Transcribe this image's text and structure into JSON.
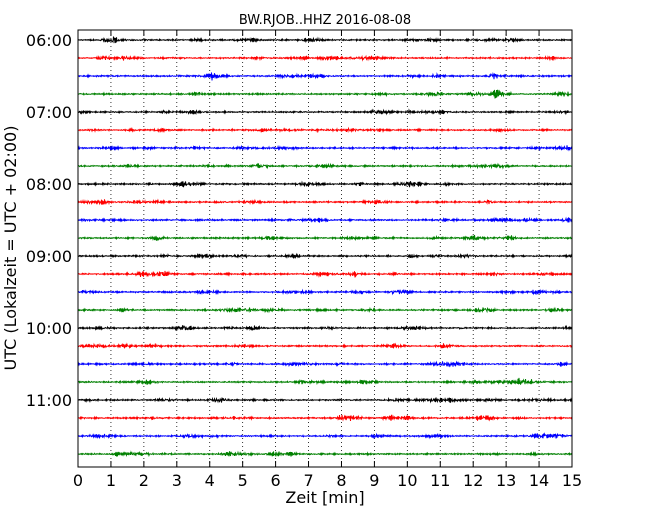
{
  "chart_data": {
    "type": "line",
    "title": "BW.RJOB..HHZ 2016-08-08",
    "xlabel": "Zeit  [min]",
    "ylabel": "UTC (Lokalzeit = UTC + 02:00)",
    "xlim": [
      0,
      15
    ],
    "x_ticks": [
      "0",
      "1",
      "2",
      "3",
      "4",
      "5",
      "6",
      "7",
      "8",
      "9",
      "10",
      "11",
      "12",
      "13",
      "14",
      "15"
    ],
    "y_ticks": [
      {
        "label": "06:00",
        "trace_index": 0
      },
      {
        "label": "07:00",
        "trace_index": 4
      },
      {
        "label": "08:00",
        "trace_index": 8
      },
      {
        "label": "09:00",
        "trace_index": 12
      },
      {
        "label": "10:00",
        "trace_index": 16
      },
      {
        "label": "11:00",
        "trace_index": 20
      }
    ],
    "trace_minutes": 15,
    "trace_colors": [
      "#000000",
      "#ff0000",
      "#0000ff",
      "#008000"
    ],
    "traces": [
      {
        "start": "06:00"
      },
      {
        "start": "06:15"
      },
      {
        "start": "06:30"
      },
      {
        "start": "06:45"
      },
      {
        "start": "07:00"
      },
      {
        "start": "07:15"
      },
      {
        "start": "07:30"
      },
      {
        "start": "07:45"
      },
      {
        "start": "08:00"
      },
      {
        "start": "08:15"
      },
      {
        "start": "08:30"
      },
      {
        "start": "08:45"
      },
      {
        "start": "09:00"
      },
      {
        "start": "09:15"
      },
      {
        "start": "09:30"
      },
      {
        "start": "09:45"
      },
      {
        "start": "10:00"
      },
      {
        "start": "10:15"
      },
      {
        "start": "10:30"
      },
      {
        "start": "10:45"
      },
      {
        "start": "11:00"
      },
      {
        "start": "11:15"
      },
      {
        "start": "11:30"
      },
      {
        "start": "11:45"
      }
    ],
    "vertical_grid": "dotted",
    "legend": "none"
  }
}
